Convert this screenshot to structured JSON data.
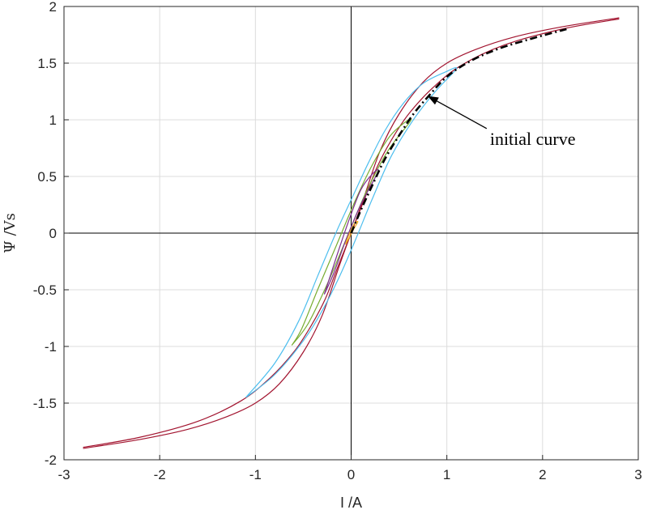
{
  "chart_data": {
    "type": "line",
    "xlabel": "I /A",
    "ylabel": "Ψ /Vs",
    "xlim": [
      -3,
      3
    ],
    "ylim": [
      -2,
      2
    ],
    "xticks": [
      -3,
      -2,
      -1,
      0,
      1,
      2,
      3
    ],
    "xtick_labels": [
      "-3",
      "-2",
      "-1",
      "0",
      "1",
      "2",
      "3"
    ],
    "yticks": [
      -2,
      -1.5,
      -1,
      -0.5,
      0,
      0.5,
      1,
      1.5,
      2
    ],
    "ytick_labels": [
      "-2",
      "-1.5",
      "-1",
      "-0.5",
      "0",
      "0.5",
      "1",
      "1.5",
      "2"
    ],
    "grid": true,
    "annotation": {
      "text": "initial curve",
      "arrow_to": [
        0.8,
        1.21
      ],
      "text_at": [
        1.45,
        0.78
      ]
    },
    "series": [
      {
        "color": "#a2142f",
        "style": "solid",
        "x": [
          -2.8,
          -2.2,
          -1.6,
          -1.15,
          -0.85,
          -0.6,
          -0.42,
          -0.27,
          -0.14,
          0.0,
          0.12,
          0.3,
          0.5,
          0.75,
          1.0,
          1.3,
          1.7,
          2.2,
          2.8
        ],
        "y": [
          -1.89,
          -1.8,
          -1.66,
          -1.48,
          -1.28,
          -1.05,
          -0.82,
          -0.58,
          -0.3,
          0.0,
          0.28,
          0.72,
          1.05,
          1.33,
          1.5,
          1.62,
          1.73,
          1.82,
          1.9
        ]
      },
      {
        "color": "#a2142f",
        "style": "solid",
        "x": [
          2.8,
          2.2,
          1.6,
          1.15,
          0.85,
          0.6,
          0.42,
          0.27,
          0.14,
          0.0,
          -0.12,
          -0.3,
          -0.5,
          -0.75,
          -1.0,
          -1.3,
          -1.7,
          -2.2,
          -2.8
        ],
        "y": [
          1.89,
          1.8,
          1.66,
          1.48,
          1.28,
          1.05,
          0.82,
          0.58,
          0.3,
          0.0,
          -0.28,
          -0.72,
          -1.05,
          -1.33,
          -1.5,
          -1.62,
          -1.73,
          -1.82,
          -1.9
        ]
      },
      {
        "color": "#4dbeee",
        "style": "solid",
        "x": [
          -1.1,
          -0.8,
          -0.5,
          -0.3,
          -0.12,
          0.05,
          0.22,
          0.42,
          0.65,
          0.88,
          1.1,
          0.98,
          0.75,
          0.55,
          0.35,
          0.18,
          0.02,
          -0.15,
          -0.35,
          -0.55,
          -0.8,
          -1.1
        ],
        "y": [
          -1.45,
          -1.25,
          -0.95,
          -0.68,
          -0.38,
          -0.05,
          0.3,
          0.68,
          1.0,
          1.25,
          1.45,
          1.42,
          1.32,
          1.15,
          0.9,
          0.62,
          0.33,
          0.02,
          -0.38,
          -0.78,
          -1.15,
          -1.45
        ]
      },
      {
        "color": "#77ac30",
        "style": "solid",
        "x": [
          -0.62,
          -0.45,
          -0.25,
          -0.05,
          0.15,
          0.38,
          0.62,
          0.55,
          0.4,
          0.22,
          0.05,
          -0.15,
          -0.35,
          -0.52,
          -0.62
        ],
        "y": [
          -0.99,
          -0.8,
          -0.45,
          -0.05,
          0.35,
          0.72,
          0.99,
          0.97,
          0.85,
          0.6,
          0.3,
          -0.1,
          -0.5,
          -0.85,
          -0.99
        ]
      },
      {
        "color": "#7e2f8e",
        "style": "solid",
        "x": [
          -0.28,
          -0.18,
          -0.05,
          0.1,
          0.28,
          0.22,
          0.1,
          -0.02,
          -0.15,
          -0.28
        ],
        "y": [
          -0.54,
          -0.35,
          -0.05,
          0.25,
          0.54,
          0.52,
          0.38,
          0.12,
          -0.2,
          -0.54
        ]
      },
      {
        "color": "#edb120",
        "style": "solid",
        "x": [
          -0.06,
          -0.02,
          0.03,
          0.07,
          0.04,
          0.0,
          -0.04,
          -0.06
        ],
        "y": [
          -0.1,
          -0.04,
          0.04,
          0.1,
          0.09,
          0.03,
          -0.05,
          -0.1
        ]
      },
      {
        "color": "#000000",
        "style": "dashdot",
        "x": [
          0.0,
          0.1,
          0.22,
          0.35,
          0.5,
          0.65,
          0.8,
          1.0,
          1.25,
          1.55,
          1.9,
          2.25
        ],
        "y": [
          0.0,
          0.2,
          0.42,
          0.65,
          0.86,
          1.05,
          1.2,
          1.38,
          1.52,
          1.63,
          1.72,
          1.8
        ]
      }
    ]
  }
}
